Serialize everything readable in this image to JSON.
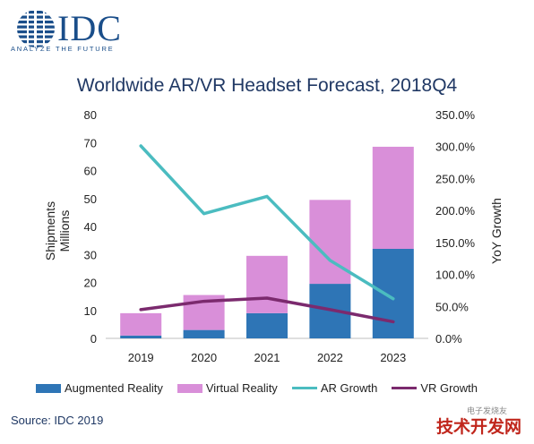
{
  "brand": {
    "name": "IDC",
    "tagline": "ANALYZE THE FUTURE",
    "color": "#1a4e8a"
  },
  "source": "Source: IDC 2019",
  "watermark": "技术开发网",
  "watermark_small": "电子发烧友",
  "chart_data": {
    "type": "bar",
    "title": "Worldwide AR/VR Headset Forecast, 2018Q4",
    "ylabel_left_line1": "Shipments",
    "ylabel_left_line2": "Millions",
    "ylabel_right": "YoY Growth",
    "categories": [
      "2019",
      "2020",
      "2021",
      "2022",
      "2023"
    ],
    "ylim_left": [
      0,
      80
    ],
    "yticks_left": [
      "0",
      "10",
      "20",
      "30",
      "40",
      "50",
      "60",
      "70",
      "80"
    ],
    "ylim_right": [
      0,
      350
    ],
    "yticks_right": [
      "0.0%",
      "50.0%",
      "100.0%",
      "150.0%",
      "200.0%",
      "250.0%",
      "300.0%",
      "350.0%"
    ],
    "stacked": true,
    "series": [
      {
        "name": "Augmented Reality",
        "kind": "bar",
        "axis": "left",
        "color": "#2e75b6",
        "values": [
          1,
          3,
          9,
          19.5,
          32
        ]
      },
      {
        "name": "Virtual Reality",
        "kind": "bar",
        "axis": "left",
        "color": "#d98fd9",
        "values": [
          8,
          12.5,
          20.5,
          30,
          36.5
        ]
      },
      {
        "name": "AR Growth",
        "kind": "line",
        "axis": "right",
        "color": "#4bbcc0",
        "values": [
          301,
          195,
          222,
          122,
          62
        ]
      },
      {
        "name": "VR Growth",
        "kind": "line",
        "axis": "right",
        "color": "#7b2a6e",
        "values": [
          45,
          58,
          63,
          45,
          26
        ]
      }
    ],
    "legend_position": "bottom",
    "grid": false
  }
}
